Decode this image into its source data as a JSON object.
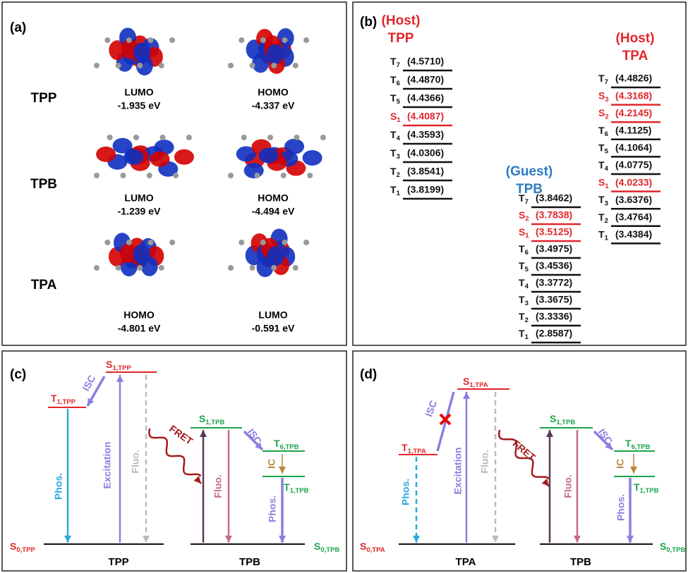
{
  "panels": {
    "a": {
      "label": "(a)",
      "molecules": [
        {
          "name": "TPP",
          "orbitals": [
            {
              "label": "LUMO",
              "energy": "-1.935 eV"
            },
            {
              "label": "HOMO",
              "energy": "-4.337 eV"
            }
          ]
        },
        {
          "name": "TPB",
          "orbitals": [
            {
              "label": "LUMO",
              "energy": "-1.239 eV"
            },
            {
              "label": "HOMO",
              "energy": "-4.494 eV"
            }
          ]
        },
        {
          "name": "TPA",
          "orbitals": [
            {
              "label": "HOMO",
              "energy": "-4.801 eV"
            },
            {
              "label": "LUMO",
              "energy": "-0.591 eV"
            }
          ]
        }
      ]
    },
    "b": {
      "label": "(b)",
      "columns": [
        {
          "role": "(Host)",
          "name": "TPP",
          "states": [
            {
              "s": "T",
              "n": "7",
              "value": "(4.5710)"
            },
            {
              "s": "T",
              "n": "6",
              "value": "(4.4870)"
            },
            {
              "s": "T",
              "n": "5",
              "value": "(4.4366)"
            },
            {
              "s": "S",
              "n": "1",
              "value": "(4.4087)"
            },
            {
              "s": "T",
              "n": "4",
              "value": "(4.3593)"
            },
            {
              "s": "T",
              "n": "3",
              "value": "(4.0306)"
            },
            {
              "s": "T",
              "n": "2",
              "value": "(3.8541)"
            },
            {
              "s": "T",
              "n": "1",
              "value": "(3.8199)"
            }
          ]
        },
        {
          "role": "(Guest)",
          "name": "TPB",
          "states": [
            {
              "s": "T",
              "n": "7",
              "value": "(3.8462)"
            },
            {
              "s": "S",
              "n": "2",
              "value": "(3.7838)"
            },
            {
              "s": "S",
              "n": "1",
              "value": "(3.5125)"
            },
            {
              "s": "T",
              "n": "6",
              "value": "(3.4975)"
            },
            {
              "s": "T",
              "n": "5",
              "value": "(3.4536)"
            },
            {
              "s": "T",
              "n": "4",
              "value": "(3.3772)"
            },
            {
              "s": "T",
              "n": "3",
              "value": "(3.3675)"
            },
            {
              "s": "T",
              "n": "2",
              "value": "(3.3336)"
            },
            {
              "s": "T",
              "n": "1",
              "value": "(2.8587)"
            }
          ]
        },
        {
          "role": "(Host)",
          "name": "TPA",
          "states": [
            {
              "s": "T",
              "n": "7",
              "value": "(4.4826)"
            },
            {
              "s": "S",
              "n": "3",
              "value": "(4.3168)"
            },
            {
              "s": "S",
              "n": "2",
              "value": "(4.2145)"
            },
            {
              "s": "T",
              "n": "6",
              "value": "(4.1125)"
            },
            {
              "s": "T",
              "n": "5",
              "value": "(4.1064)"
            },
            {
              "s": "T",
              "n": "4",
              "value": "(4.0775)"
            },
            {
              "s": "S",
              "n": "1",
              "value": "(4.0233)"
            },
            {
              "s": "T",
              "n": "3",
              "value": "(3.6376)"
            },
            {
              "s": "T",
              "n": "2",
              "value": "(3.4764)"
            },
            {
              "s": "T",
              "n": "1",
              "value": "(3.4384)"
            }
          ]
        }
      ]
    },
    "c": {
      "label": "(c)",
      "levels": [
        {
          "s": "S",
          "n": "1,TPP"
        },
        {
          "s": "T",
          "n": "1,TPP"
        },
        {
          "s": "S",
          "n": "0,TPP"
        },
        {
          "s": "S",
          "n": "1,TPB"
        },
        {
          "s": "T",
          "n": "6,TPB"
        },
        {
          "s": "T",
          "n": "1,TPB"
        },
        {
          "s": "S",
          "n": "0,TPB"
        }
      ],
      "processes": [
        "ISC",
        "Excitation",
        "Fluo.",
        "Phos.",
        "FRET",
        "Fluo.",
        "ISC",
        "IC",
        "Phos."
      ],
      "molecules": [
        "TPP",
        "TPB"
      ]
    },
    "d": {
      "label": "(d)",
      "levels": [
        {
          "s": "S",
          "n": "1,TPA"
        },
        {
          "s": "T",
          "n": "1,TPA"
        },
        {
          "s": "S",
          "n": "0,TPA"
        },
        {
          "s": "S",
          "n": "1,TPB"
        },
        {
          "s": "T",
          "n": "6,TPB"
        },
        {
          "s": "T",
          "n": "1,TPB"
        },
        {
          "s": "S",
          "n": "0,TPB"
        }
      ],
      "processes": [
        "ISC",
        "Excitation",
        "Fluo.",
        "Phos.",
        "FRET",
        "Fluo.",
        "ISC",
        "IC",
        "Phos."
      ],
      "molecules": [
        "TPA",
        "TPB"
      ]
    }
  }
}
